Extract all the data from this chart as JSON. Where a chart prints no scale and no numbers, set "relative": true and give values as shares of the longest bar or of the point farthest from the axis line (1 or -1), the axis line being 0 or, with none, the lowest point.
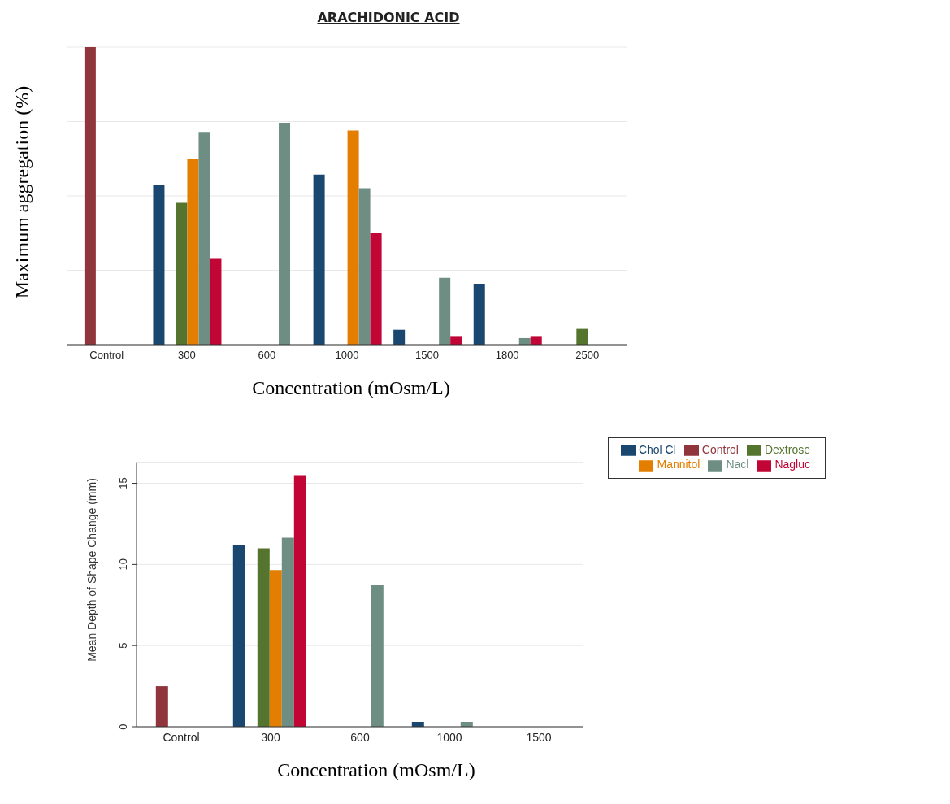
{
  "chart_data": [
    {
      "type": "bar",
      "title": "ARACHIDONIC ACID",
      "xlabel": "Concentration (mOsm/L)",
      "ylabel": "Maximum aggregation (%)",
      "relative": true,
      "grid": "y",
      "legend": false,
      "categories": [
        "Control",
        "300",
        "600",
        "1000",
        "1500",
        "1800",
        "2500"
      ],
      "series": [
        {
          "color": "#1a476f",
          "values": [
            null,
            0.537,
            null,
            0.572,
            0.05,
            0.205,
            null
          ]
        },
        {
          "color": "#90353b",
          "values": [
            1,
            null,
            null,
            null,
            null,
            null,
            null
          ]
        },
        {
          "color": "#55752f",
          "values": [
            null,
            0.477,
            null,
            null,
            null,
            null,
            0.053
          ]
        },
        {
          "color": "#e37e00",
          "values": [
            null,
            0.625,
            null,
            0.72,
            null,
            null,
            null
          ]
        },
        {
          "color": "#6e8e84",
          "values": [
            null,
            0.715,
            0.746,
            0.526,
            0.225,
            0.022,
            null
          ]
        },
        {
          "color": "#c10534",
          "values": [
            null,
            0.291,
            null,
            0.375,
            0.029,
            0.029,
            null
          ]
        }
      ]
    },
    {
      "type": "bar",
      "xlabel": "Concentration (mOsm/L)",
      "ylabel": "Mean Depth of Shape Change (mm)",
      "ylim": [
        0,
        16.3
      ],
      "yticks": [
        0,
        5,
        10,
        15
      ],
      "grid": "y",
      "legend": "right",
      "categories": [
        "Control",
        "300",
        "600",
        "1000",
        "1500"
      ],
      "series": [
        {
          "name": "Chol Cl",
          "color": "#1a476f",
          "values": [
            null,
            11.2,
            null,
            0.3,
            null
          ]
        },
        {
          "name": "Control",
          "color": "#90353b",
          "values": [
            2.5,
            null,
            null,
            null,
            null
          ]
        },
        {
          "name": "Dextrose",
          "color": "#55752f",
          "values": [
            null,
            11.0,
            null,
            null,
            null
          ]
        },
        {
          "name": "Mannitol",
          "color": "#e37e00",
          "values": [
            null,
            9.65,
            null,
            null,
            null
          ]
        },
        {
          "name": "Nacl",
          "color": "#6e8e84",
          "values": [
            null,
            11.65,
            8.75,
            0.3,
            null
          ]
        },
        {
          "name": "Nagluc",
          "color": "#c10534",
          "values": [
            null,
            15.5,
            null,
            null,
            null
          ]
        }
      ]
    }
  ]
}
